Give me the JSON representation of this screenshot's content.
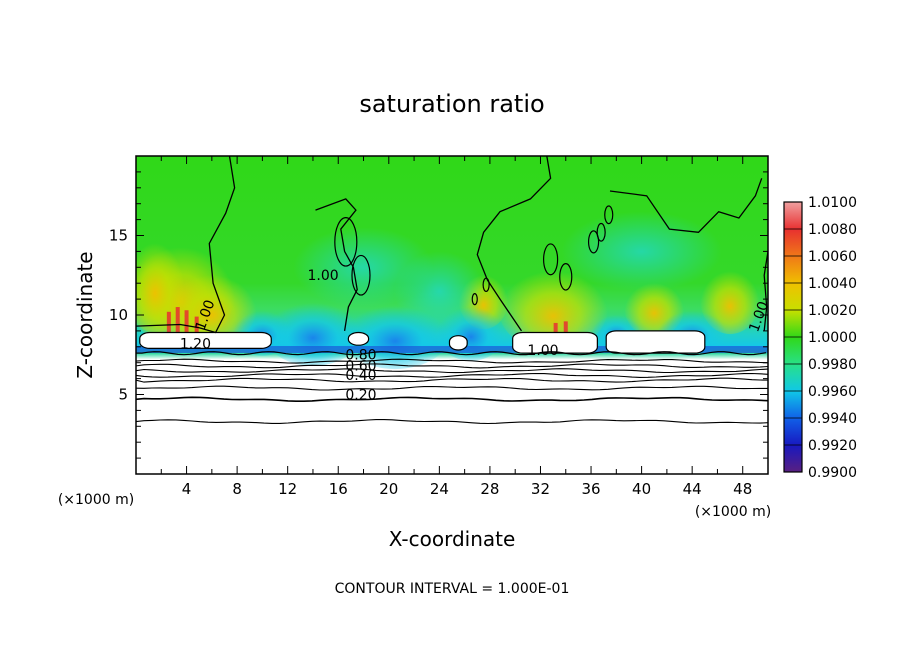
{
  "chart_data": {
    "type": "heatmap",
    "title": "saturation ratio",
    "xlabel": "X-coordinate",
    "ylabel": "Z-coordinate",
    "x_unit_left": "(×1000 m)",
    "x_unit_right": "(×1000 m)",
    "footer": "CONTOUR INTERVAL = 1.000E-01",
    "xlim": [
      0,
      50
    ],
    "ylim": [
      0,
      20
    ],
    "xticks": [
      4,
      8,
      12,
      16,
      20,
      24,
      28,
      32,
      36,
      40,
      44,
      48
    ],
    "yticks": [
      5,
      10,
      15
    ],
    "colorbar": {
      "levels": [
        "1.0100",
        "1.0080",
        "1.0060",
        "1.0040",
        "1.0020",
        "1.0000",
        "0.9980",
        "0.9960",
        "0.9940",
        "0.9920",
        "0.9900"
      ],
      "colors": [
        "#f0a0a0",
        "#e83030",
        "#f07818",
        "#f0c000",
        "#c8e000",
        "#30d818",
        "#28e088",
        "#10c8e8",
        "#1060e8",
        "#1818c0",
        "#5a2080"
      ],
      "ylim": [
        0.99,
        1.01
      ]
    },
    "contour_labels": [
      {
        "text": "1.00",
        "x": 14.8,
        "y": 12.2
      },
      {
        "text": "1.00",
        "x": 5.8,
        "y": 9.9
      },
      {
        "text": "1.20",
        "x": 4.7,
        "y": 7.9
      },
      {
        "text": "1.00",
        "x": 32.2,
        "y": 7.5
      },
      {
        "text": "1.00",
        "x": 49.6,
        "y": 9.8
      },
      {
        "text": "0.80",
        "x": 17.8,
        "y": 7.2
      },
      {
        "text": "0.60",
        "x": 17.8,
        "y": 6.5
      },
      {
        "text": "0.40",
        "x": 17.8,
        "y": 5.9
      },
      {
        "text": "0.20",
        "x": 17.8,
        "y": 4.7
      }
    ],
    "contour_levels_below_cloud": [
      {
        "level": "0.80",
        "z": 7.1
      },
      {
        "level": "0.70",
        "z": 6.8
      },
      {
        "level": "0.60",
        "z": 6.5
      },
      {
        "level": "0.50",
        "z": 6.2
      },
      {
        "level": "0.40",
        "z": 5.9
      },
      {
        "level": "0.30",
        "z": 5.4
      },
      {
        "level": "0.20",
        "z": 4.7
      },
      {
        "level": "0.10",
        "z": 3.3
      }
    ]
  }
}
